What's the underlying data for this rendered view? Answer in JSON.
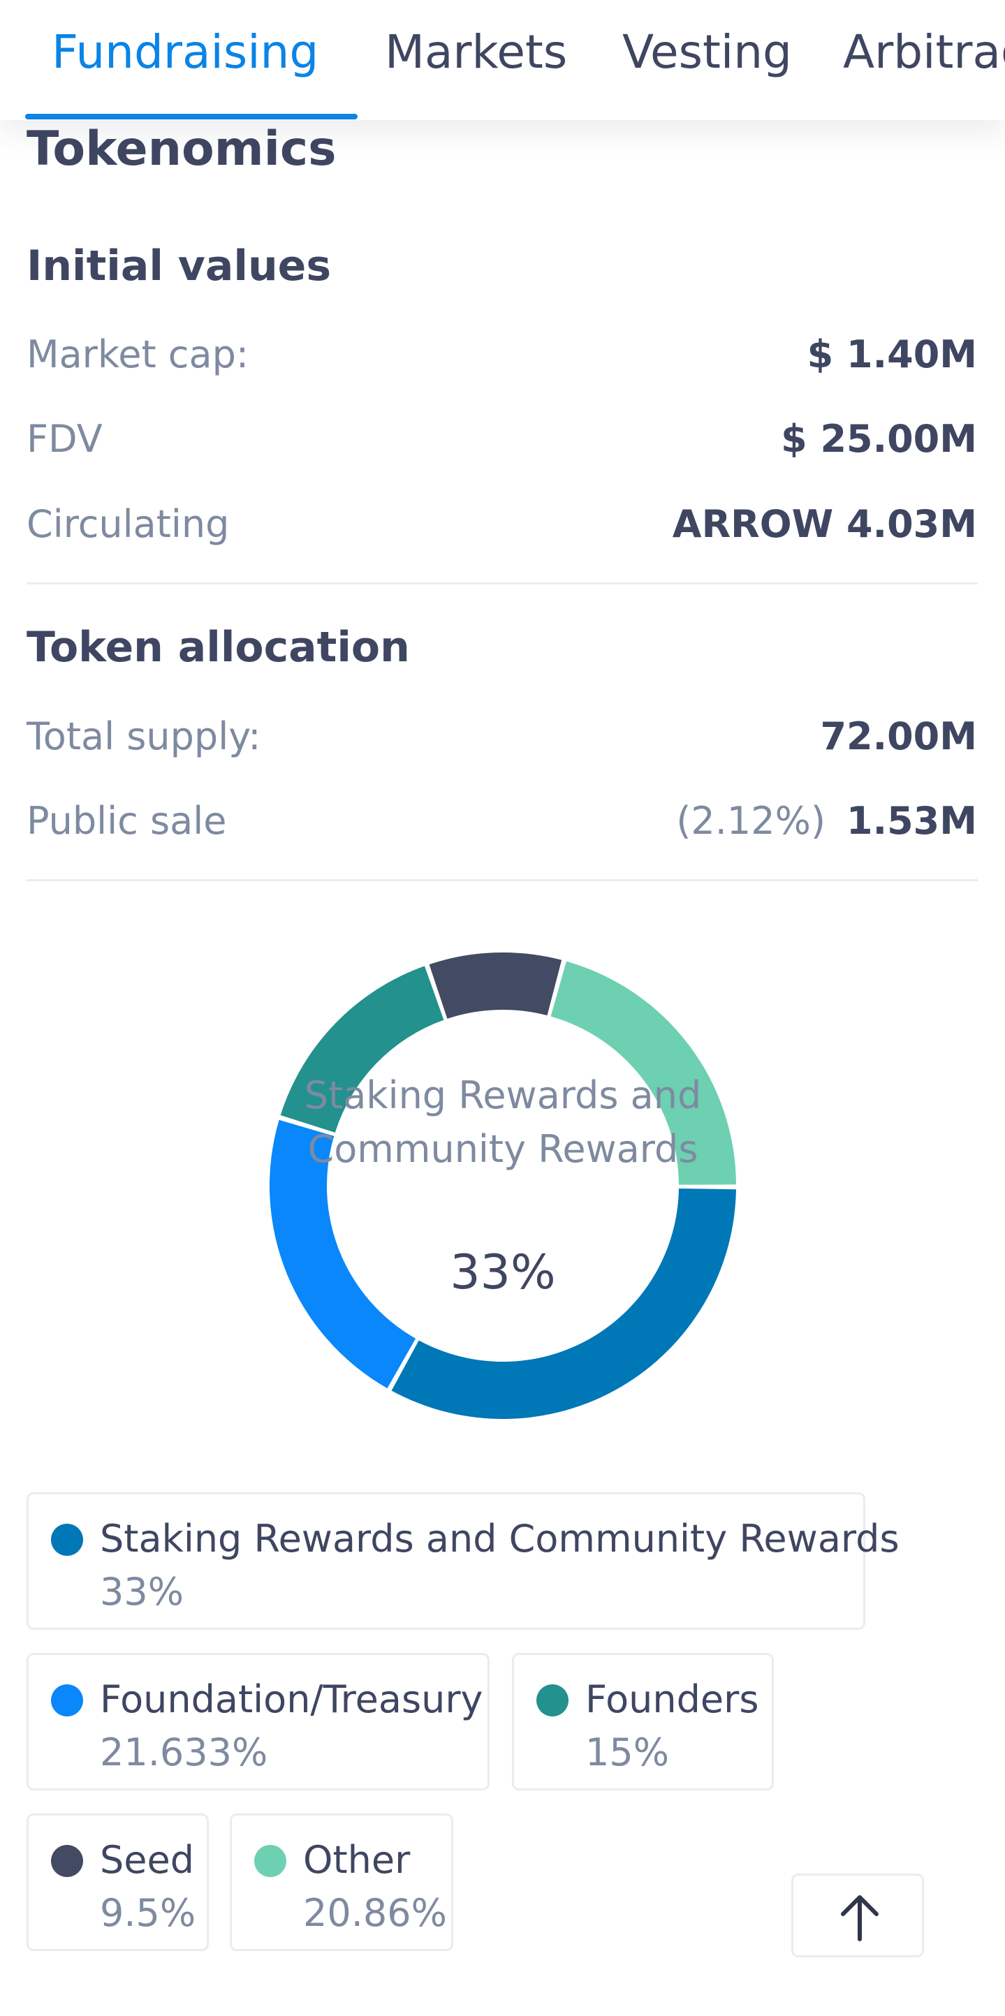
{
  "tabs": [
    {
      "label": "Fundraising",
      "active": true
    },
    {
      "label": "Markets",
      "active": false
    },
    {
      "label": "Vesting",
      "active": false
    },
    {
      "label": "Arbitrage",
      "active": false
    }
  ],
  "section_title": "Tokenomics",
  "initial_values": {
    "heading": "Initial values",
    "market_cap": {
      "label": "Market cap:",
      "value": "$ 1.40M"
    },
    "fdv": {
      "label": "FDV",
      "value": "$ 25.00M"
    },
    "circulating": {
      "label": "Circulating",
      "value": "ARROW 4.03M"
    }
  },
  "token_allocation": {
    "heading": "Token allocation",
    "total_supply": {
      "label": "Total supply:",
      "value": "72.00M"
    },
    "public_sale": {
      "label": "Public sale",
      "percent": "(2.12%)",
      "value": "1.53M"
    }
  },
  "chart_data": {
    "type": "pie",
    "center_label": "Staking Rewards and Community Rewards",
    "center_value": "33%",
    "categories": [
      "Staking Rewards and Community Rewards",
      "Foundation/Treasury",
      "Founders",
      "Seed",
      "Other"
    ],
    "values": [
      33,
      21.633,
      15,
      9.5,
      20.86
    ],
    "colors": [
      "#0077b6",
      "#0a87fa",
      "#23918d",
      "#434a63",
      "#6dd0b1"
    ]
  },
  "legend": [
    {
      "name": "Staking Rewards and Community Rewards",
      "percent": "33%",
      "color": "#0077b6"
    },
    {
      "name": "Foundation/Treasury",
      "percent": "21.633%",
      "color": "#0a87fa"
    },
    {
      "name": "Founders",
      "percent": "15%",
      "color": "#23918d"
    },
    {
      "name": "Seed",
      "percent": "9.5%",
      "color": "#434a63"
    },
    {
      "name": "Other",
      "percent": "20.86%",
      "color": "#6dd0b1"
    }
  ],
  "scroll_top_icon": "arrow-up-icon"
}
